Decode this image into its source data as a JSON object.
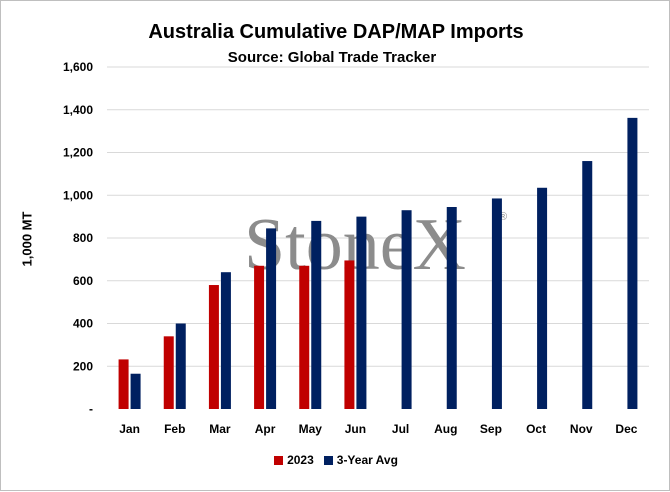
{
  "watermark": "StoneX",
  "colors": {
    "s2023": "#c00000",
    "avg": "#002060",
    "grid": "#d9d9d9"
  },
  "chart_data": {
    "type": "bar",
    "title": "Australia Cumulative DAP/MAP Imports",
    "subtitle": "Source: Global Trade Tracker",
    "ylabel": "1,000 MT",
    "xlabel": "",
    "ylim": [
      0,
      1600
    ],
    "yticks": [
      0,
      200,
      400,
      600,
      800,
      1000,
      1200,
      1400,
      1600
    ],
    "ytick_labels": [
      "-",
      "200",
      "400",
      "600",
      "800",
      "1,000",
      "1,200",
      "1,400",
      "1,600"
    ],
    "categories": [
      "Jan",
      "Feb",
      "Mar",
      "Apr",
      "May",
      "Jun",
      "Jul",
      "Aug",
      "Sep",
      "Oct",
      "Nov",
      "Dec"
    ],
    "series": [
      {
        "name": "2023",
        "color": "#c00000",
        "values": [
          232,
          340,
          580,
          670,
          670,
          695,
          null,
          null,
          null,
          null,
          null,
          null
        ]
      },
      {
        "name": "3-Year Avg",
        "color": "#002060",
        "values": [
          165,
          400,
          640,
          845,
          880,
          900,
          930,
          945,
          985,
          1035,
          1160,
          1362
        ]
      }
    ],
    "grid": true,
    "legend_position": "bottom"
  }
}
